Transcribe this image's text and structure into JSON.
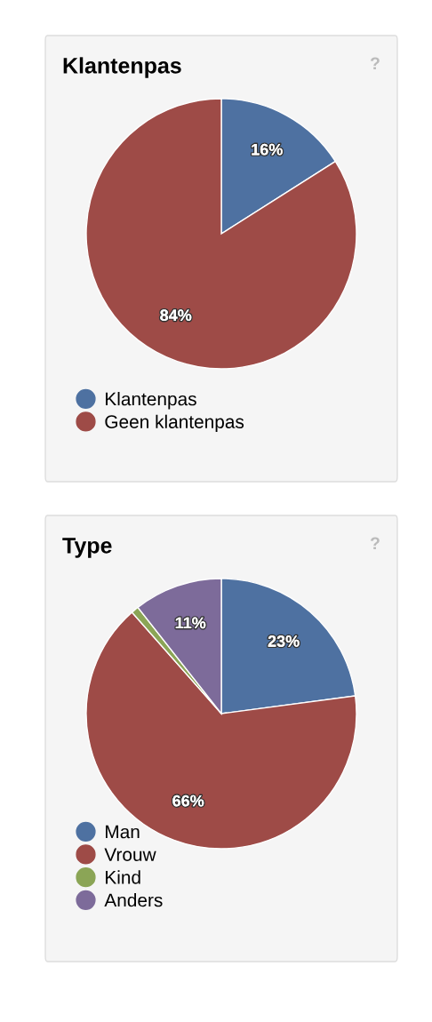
{
  "chart_data": [
    {
      "type": "pie",
      "title": "Klantenpas",
      "annotations": [
        "?"
      ],
      "categories": [
        "Klantenpas",
        "Geen klantenpas"
      ],
      "values": [
        16,
        84
      ],
      "value_labels": [
        "16%",
        "84%"
      ],
      "colors": [
        "#4e71a1",
        "#9e4b47"
      ],
      "legend": "bottom"
    },
    {
      "type": "pie",
      "title": "Type",
      "annotations": [
        "?"
      ],
      "categories": [
        "Man",
        "Vrouw",
        "Kind",
        "Anders"
      ],
      "values": [
        22.9,
        65.6,
        0.9,
        10.6
      ],
      "value_labels": [
        "23%",
        "66%",
        null,
        "11%"
      ],
      "colors": [
        "#4e71a1",
        "#9e4b47",
        "#8ba556",
        "#7d6b9a"
      ],
      "legend": "bottom"
    }
  ]
}
